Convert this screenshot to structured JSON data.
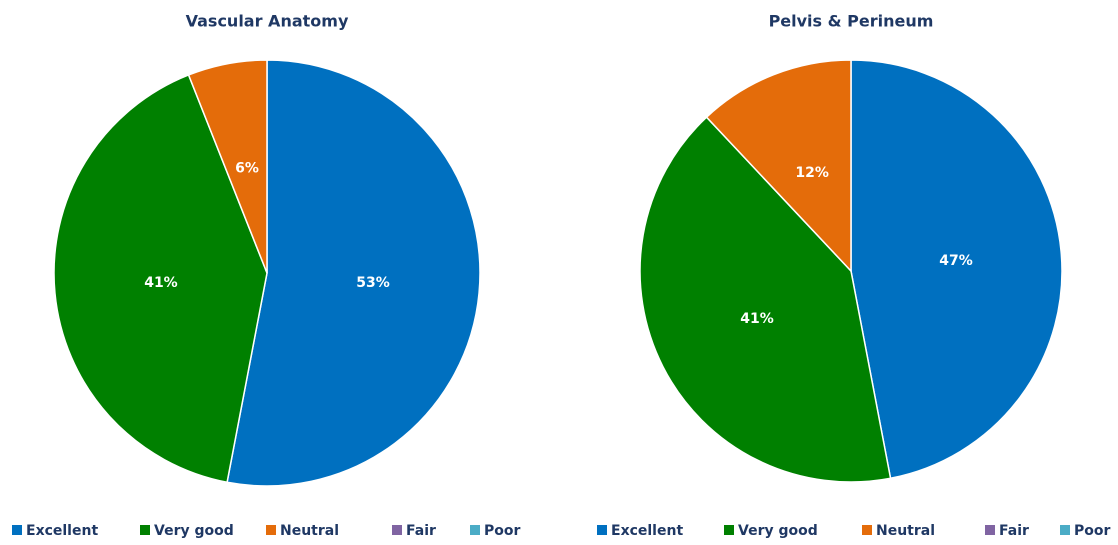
{
  "chart_data": [
    {
      "type": "pie",
      "title": "Vascular Anatomy",
      "categories": [
        "Excellent",
        "Very good",
        "Neutral",
        "Fair",
        "Poor"
      ],
      "values": [
        53,
        41,
        6,
        0,
        0
      ],
      "value_labels": [
        "53%",
        "41%",
        "6%",
        null,
        null
      ],
      "colors": [
        "#0070c0",
        "#008000",
        "#e46c0a",
        "#8064a2",
        "#4bacc6"
      ],
      "legend": "bottom"
    },
    {
      "type": "pie",
      "title": "Pelvis & Perineum",
      "categories": [
        "Excellent",
        "Very good",
        "Neutral",
        "Fair",
        "Poor"
      ],
      "values": [
        47,
        41,
        12,
        0,
        0
      ],
      "value_labels": [
        "47%",
        "41%",
        "12%",
        null,
        null
      ],
      "colors": [
        "#0070c0",
        "#008000",
        "#e46c0a",
        "#8064a2",
        "#4bacc6"
      ],
      "legend": "bottom"
    }
  ]
}
